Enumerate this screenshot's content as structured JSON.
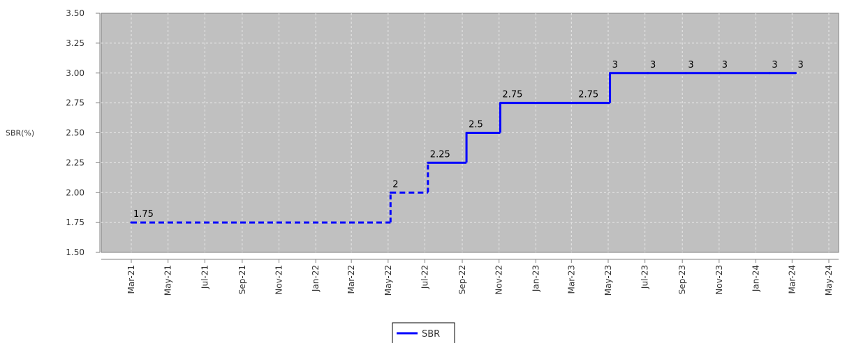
{
  "chart_data": {
    "type": "line",
    "ylabel": "SBR(%)",
    "ylim": [
      1.5,
      3.5
    ],
    "yticks": [
      "1.50",
      "1.75",
      "2.00",
      "2.25",
      "2.50",
      "2.75",
      "3.00",
      "3.25",
      "3.50"
    ],
    "xtick_labels": [
      "Mar-21",
      "May-21",
      "Jul-21",
      "Sep-21",
      "Nov-21",
      "Jan-22",
      "Mar-22",
      "May-22",
      "Jul-22",
      "Sep-22",
      "Nov-22",
      "Jan-23",
      "Mar-23",
      "May-23",
      "Jul-23",
      "Sep-23",
      "Nov-23",
      "Jan-24",
      "Mar-24",
      "May-24"
    ],
    "xlim": [
      "2021-03-01",
      "2024-05-01"
    ],
    "grid": true,
    "legend_position": "bottom",
    "colors": {
      "plot_bg": "#c0c0c0",
      "series": "#0000ff",
      "grid": "#e8e8e8"
    },
    "series": [
      {
        "name": "SBR",
        "color": "#0000ff",
        "points": [
          {
            "x": "2021-03-01",
            "y": 1.75,
            "label": "1.75"
          },
          {
            "x": "2022-05-05",
            "y": 2.0,
            "label": "2"
          },
          {
            "x": "2022-07-06",
            "y": 2.25,
            "label": "2.25"
          },
          {
            "x": "2022-09-08",
            "y": 2.5,
            "label": "2.5"
          },
          {
            "x": "2022-11-03",
            "y": 2.75,
            "label": "2.75"
          },
          {
            "x": "2023-03-09",
            "y": 2.75,
            "label": "2.75"
          },
          {
            "x": "2023-05-04",
            "y": 3.0,
            "label": "3"
          },
          {
            "x": "2023-07-06",
            "y": 3.0,
            "label": "3"
          },
          {
            "x": "2023-09-07",
            "y": 3.0,
            "label": "3"
          },
          {
            "x": "2023-11-02",
            "y": 3.0,
            "label": "3"
          },
          {
            "x": "2024-01-24",
            "y": 3.0,
            "label": "3"
          },
          {
            "x": "2024-03-07",
            "y": 3.0,
            "label": "3"
          }
        ],
        "dashed_until": "2022-07-06"
      }
    ]
  }
}
